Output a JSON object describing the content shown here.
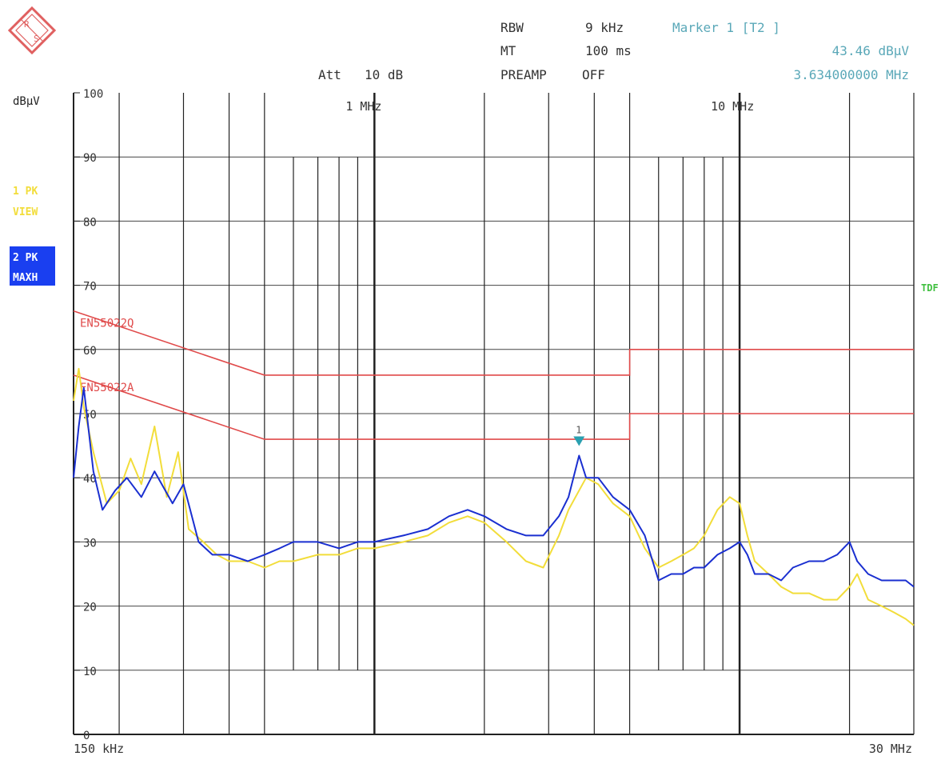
{
  "header": {
    "rbw_label": "RBW",
    "rbw_value": "9 kHz",
    "mt_label": "MT",
    "mt_value": "100 ms",
    "att_label": "Att",
    "att_value": "10 dB",
    "preamp_label": "PREAMP",
    "preamp_value": "OFF",
    "marker_title": "Marker 1 [T2 ]",
    "marker_level": "43.46 dBµV",
    "marker_freq": "3.634000000 MHz"
  },
  "side": {
    "unit_label": "dBµV",
    "trace1_line1": "1 PK",
    "trace1_line2": "VIEW",
    "trace2_line1": "2 PK",
    "trace2_line2": "MAXH",
    "tdf_label": "TDF"
  },
  "colors": {
    "trace1": "#f2dd3a",
    "trace2": "#1a2fd0",
    "limit": "#e04a4a",
    "marker": "#2aa0b0",
    "trace2_badge_bg": "#1a3ff0",
    "tdf": "#3fbf3f"
  },
  "chart_data": {
    "type": "line",
    "x_scale": "log",
    "xlim_hz": [
      150000,
      30000000
    ],
    "ylim": [
      0,
      100
    ],
    "ylabel": "dBµV",
    "y_ticks": [
      100,
      90,
      80,
      70,
      60,
      50,
      40,
      30,
      20,
      10,
      0
    ],
    "x_tick_labels": [
      {
        "x_hz": 150000,
        "label": "150 kHz"
      },
      {
        "x_hz": 1000000,
        "label": "1 MHz"
      },
      {
        "x_hz": 10000000,
        "label": "10 MHz"
      },
      {
        "x_hz": 30000000,
        "label": "30 MHz"
      }
    ],
    "grid": true,
    "limit_lines": [
      {
        "name": "EN55022Q",
        "points": [
          [
            150000,
            66
          ],
          [
            500000,
            56
          ],
          [
            5000000,
            56
          ],
          [
            5000000,
            60
          ],
          [
            30000000,
            60
          ]
        ]
      },
      {
        "name": "EN55022A",
        "points": [
          [
            150000,
            56
          ],
          [
            500000,
            46
          ],
          [
            5000000,
            46
          ],
          [
            5000000,
            50
          ],
          [
            30000000,
            50
          ]
        ]
      }
    ],
    "series": [
      {
        "name": "1 PK VIEW",
        "points": [
          [
            150000,
            52
          ],
          [
            155000,
            57
          ],
          [
            160000,
            51
          ],
          [
            170000,
            44
          ],
          [
            185000,
            36
          ],
          [
            200000,
            38
          ],
          [
            215000,
            43
          ],
          [
            230000,
            39
          ],
          [
            250000,
            48
          ],
          [
            270000,
            37
          ],
          [
            290000,
            44
          ],
          [
            310000,
            32
          ],
          [
            340000,
            30
          ],
          [
            370000,
            28
          ],
          [
            400000,
            27
          ],
          [
            450000,
            27
          ],
          [
            500000,
            26
          ],
          [
            550000,
            27
          ],
          [
            600000,
            27
          ],
          [
            700000,
            28
          ],
          [
            800000,
            28
          ],
          [
            900000,
            29
          ],
          [
            1000000,
            29
          ],
          [
            1200000,
            30
          ],
          [
            1400000,
            31
          ],
          [
            1600000,
            33
          ],
          [
            1800000,
            34
          ],
          [
            2000000,
            33
          ],
          [
            2300000,
            30
          ],
          [
            2600000,
            27
          ],
          [
            2900000,
            26
          ],
          [
            3200000,
            31
          ],
          [
            3400000,
            35
          ],
          [
            3634000,
            38
          ],
          [
            3800000,
            40
          ],
          [
            4100000,
            39
          ],
          [
            4500000,
            36
          ],
          [
            5000000,
            34
          ],
          [
            5500000,
            29
          ],
          [
            6000000,
            26
          ],
          [
            6500000,
            27
          ],
          [
            7000000,
            28
          ],
          [
            7500000,
            29
          ],
          [
            8000000,
            31
          ],
          [
            8700000,
            35
          ],
          [
            9400000,
            37
          ],
          [
            10000000,
            36
          ],
          [
            10500000,
            31
          ],
          [
            11000000,
            27
          ],
          [
            12000000,
            25
          ],
          [
            13000000,
            23
          ],
          [
            14000000,
            22
          ],
          [
            15500000,
            22
          ],
          [
            17000000,
            21
          ],
          [
            18500000,
            21
          ],
          [
            20000000,
            23
          ],
          [
            21000000,
            25
          ],
          [
            22500000,
            21
          ],
          [
            24500000,
            20
          ],
          [
            26500000,
            19
          ],
          [
            28500000,
            18
          ],
          [
            30000000,
            17
          ]
        ]
      },
      {
        "name": "2 PK MAXH",
        "points": [
          [
            150000,
            40
          ],
          [
            155000,
            48
          ],
          [
            160000,
            54
          ],
          [
            170000,
            41
          ],
          [
            180000,
            35
          ],
          [
            195000,
            38
          ],
          [
            210000,
            40
          ],
          [
            230000,
            37
          ],
          [
            250000,
            41
          ],
          [
            280000,
            36
          ],
          [
            300000,
            39
          ],
          [
            330000,
            30
          ],
          [
            360000,
            28
          ],
          [
            400000,
            28
          ],
          [
            450000,
            27
          ],
          [
            500000,
            28
          ],
          [
            550000,
            29
          ],
          [
            600000,
            30
          ],
          [
            700000,
            30
          ],
          [
            800000,
            29
          ],
          [
            900000,
            30
          ],
          [
            1000000,
            30
          ],
          [
            1200000,
            31
          ],
          [
            1400000,
            32
          ],
          [
            1600000,
            34
          ],
          [
            1800000,
            35
          ],
          [
            2000000,
            34
          ],
          [
            2300000,
            32
          ],
          [
            2600000,
            31
          ],
          [
            2900000,
            31
          ],
          [
            3200000,
            34
          ],
          [
            3400000,
            37
          ],
          [
            3634000,
            43.46
          ],
          [
            3800000,
            40
          ],
          [
            4100000,
            40
          ],
          [
            4500000,
            37
          ],
          [
            5000000,
            35
          ],
          [
            5500000,
            31
          ],
          [
            6000000,
            24
          ],
          [
            6500000,
            25
          ],
          [
            7000000,
            25
          ],
          [
            7500000,
            26
          ],
          [
            8000000,
            26
          ],
          [
            8700000,
            28
          ],
          [
            9400000,
            29
          ],
          [
            10000000,
            30
          ],
          [
            10500000,
            28
          ],
          [
            11000000,
            25
          ],
          [
            12000000,
            25
          ],
          [
            13000000,
            24
          ],
          [
            14000000,
            26
          ],
          [
            15500000,
            27
          ],
          [
            17000000,
            27
          ],
          [
            18500000,
            28
          ],
          [
            20000000,
            30
          ],
          [
            21000000,
            27
          ],
          [
            22500000,
            25
          ],
          [
            24500000,
            24
          ],
          [
            26500000,
            24
          ],
          [
            28500000,
            24
          ],
          [
            30000000,
            23
          ]
        ]
      }
    ],
    "marker": {
      "label": "1",
      "x_hz": 3634000,
      "y": 43.46
    }
  }
}
